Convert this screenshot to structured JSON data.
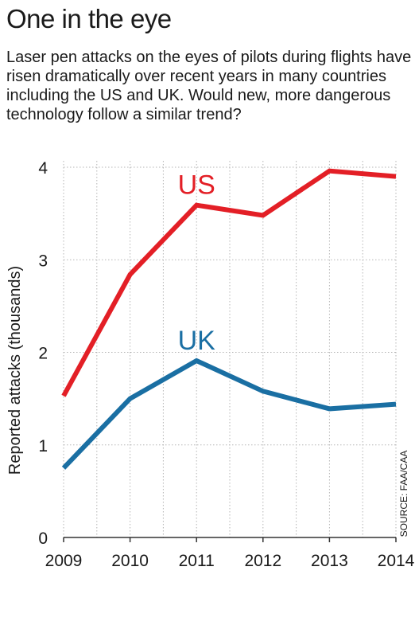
{
  "chart_data": {
    "type": "line",
    "title": "One in the eye",
    "subtitle": "Laser pen attacks on the eyes of pilots during flights have risen dramatically over recent years in many countries including the US and UK. Would new, more dangerous technology follow a similar trend?",
    "ylabel": "Reported attacks (thousands)",
    "xlabel": "",
    "x": [
      "2009",
      "2010",
      "2011",
      "2012",
      "2013",
      "2014"
    ],
    "ylim": [
      0,
      4
    ],
    "yticks": [
      "0",
      "1",
      "2",
      "3",
      "4"
    ],
    "grid": true,
    "series": [
      {
        "name": "US",
        "values": [
          1.53,
          2.84,
          3.59,
          3.48,
          3.96,
          3.9
        ],
        "color": "#e31f26"
      },
      {
        "name": "UK",
        "values": [
          0.75,
          1.5,
          1.91,
          1.58,
          1.39,
          1.44
        ],
        "color": "#1a6fa3"
      }
    ],
    "source": "SOURCE: FAA/CAA"
  }
}
